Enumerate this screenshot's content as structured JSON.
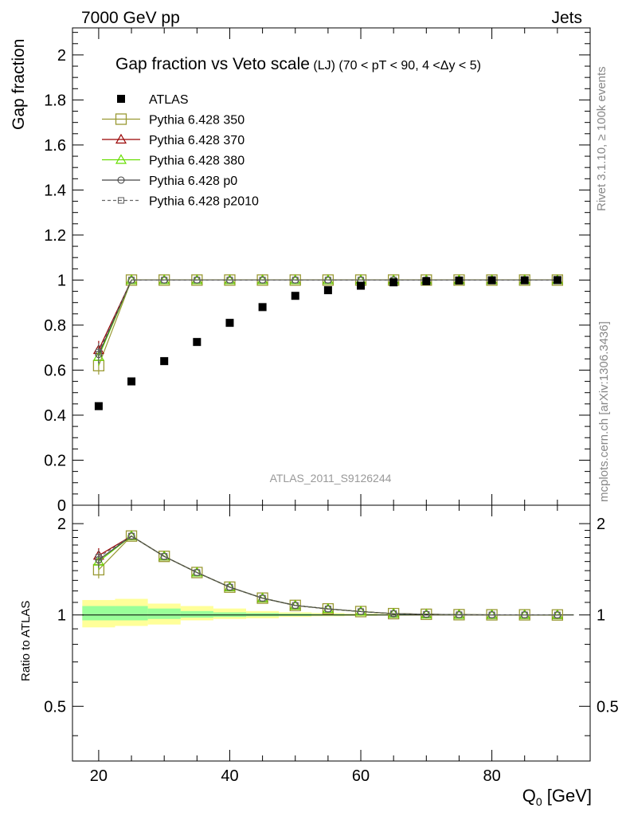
{
  "header": {
    "left": "7000 GeV pp",
    "right": "Jets"
  },
  "title": {
    "main": "Gap fraction vs Veto scale",
    "sub": "(LJ) (70 < pT <  90, 4 <Δy < 5)"
  },
  "side_labels": {
    "top": "Rivet 3.1.10, ≥ 100k events",
    "bottom": "mcplots.cern.ch [arXiv:1306.3436]"
  },
  "watermark": "ATLAS_2011_S9126244",
  "colors": {
    "ATLAS": "#000000",
    "350": "#999933",
    "370": "#990000",
    "380": "#66dd00",
    "p0": "#444444",
    "p2010": "#666666",
    "band_outer": "#ffff99",
    "band_inner": "#99ff99"
  },
  "chart_data": [
    {
      "type": "scatter",
      "ylabel": "Gap fraction",
      "xlim": [
        16,
        95
      ],
      "ylim": [
        0,
        2.12
      ],
      "yticks": [
        0,
        0.2,
        0.4,
        0.6,
        0.8,
        1,
        1.2,
        1.4,
        1.6,
        1.8,
        2
      ],
      "ytick_labels": [
        "0",
        "0.2",
        "0.4",
        "0.6",
        "0.8",
        "1",
        "1.2",
        "1.4",
        "1.6",
        "1.8",
        "2"
      ],
      "legend_position": "top-left",
      "x": [
        20,
        25,
        30,
        35,
        40,
        45,
        50,
        55,
        60,
        65,
        70,
        75,
        80,
        85,
        90
      ],
      "series": [
        {
          "name": "ATLAS",
          "key": "ATLAS",
          "marker": "filled-square",
          "values": [
            0.44,
            0.55,
            0.64,
            0.725,
            0.81,
            0.88,
            0.93,
            0.955,
            0.975,
            0.99,
            0.995,
            0.998,
            0.999,
            0.999,
            1.0
          ]
        },
        {
          "name": "Pythia 6.428 350",
          "key": "350",
          "marker": "open-square-large",
          "values": [
            0.62,
            1.0,
            1.0,
            1.0,
            1.0,
            1.0,
            1.0,
            1.0,
            1.0,
            1.0,
            1.0,
            1.0,
            1.0,
            1.0,
            1.0
          ],
          "errors": [
            0.04,
            0,
            0,
            0,
            0,
            0,
            0,
            0,
            0,
            0,
            0,
            0,
            0,
            0,
            0
          ]
        },
        {
          "name": "Pythia 6.428 370",
          "key": "370",
          "marker": "open-triangle",
          "values": [
            0.69,
            1.0,
            1.0,
            1.0,
            1.0,
            1.0,
            1.0,
            1.0,
            1.0,
            1.0,
            1.0,
            1.0,
            1.0,
            1.0,
            1.0
          ],
          "errors": [
            0.04,
            0,
            0,
            0,
            0,
            0,
            0,
            0,
            0,
            0,
            0,
            0,
            0,
            0,
            0
          ]
        },
        {
          "name": "Pythia 6.428 380",
          "key": "380",
          "marker": "open-triangle",
          "values": [
            0.66,
            1.0,
            1.0,
            1.0,
            1.0,
            1.0,
            1.0,
            1.0,
            1.0,
            1.0,
            1.0,
            1.0,
            1.0,
            1.0,
            1.0
          ],
          "errors": [
            0.04,
            0,
            0,
            0,
            0,
            0,
            0,
            0,
            0,
            0,
            0,
            0,
            0,
            0,
            0
          ]
        },
        {
          "name": "Pythia 6.428 p0",
          "key": "p0",
          "marker": "open-circle",
          "values": [
            0.67,
            1.0,
            1.0,
            1.0,
            1.0,
            1.0,
            1.0,
            1.0,
            1.0,
            1.0,
            1.0,
            1.0,
            1.0,
            1.0,
            1.0
          ],
          "errors": [
            0.04,
            0,
            0,
            0,
            0,
            0,
            0,
            0,
            0,
            0,
            0,
            0,
            0,
            0,
            0
          ]
        },
        {
          "name": "Pythia 6.428 p2010",
          "key": "p2010",
          "marker": "open-square-small",
          "dashed": true,
          "values": [
            0.68,
            1.0,
            1.0,
            1.0,
            1.0,
            1.0,
            1.0,
            1.0,
            1.0,
            1.0,
            1.0,
            1.0,
            1.0,
            1.0,
            1.0
          ],
          "errors": [
            0.04,
            0,
            0,
            0,
            0,
            0,
            0,
            0,
            0,
            0,
            0,
            0,
            0,
            0,
            0
          ]
        }
      ]
    },
    {
      "type": "line",
      "xlabel": "Q",
      "xlabel_sub": "0",
      "xlabel_unit": " [GeV]",
      "ylabel": "Ratio to ATLAS",
      "xlim": [
        16,
        95
      ],
      "ylim": [
        0.33,
        2.3
      ],
      "log_y": true,
      "xticks": [
        20,
        40,
        60,
        80
      ],
      "xtick_labels": [
        "20",
        "40",
        "60",
        "80"
      ],
      "yticks": [
        0.5,
        1,
        2
      ],
      "ytick_labels": [
        "0.5",
        "1",
        "2"
      ],
      "x": [
        20,
        25,
        30,
        35,
        40,
        45,
        50,
        55,
        60,
        65,
        70,
        75,
        80,
        85,
        90
      ],
      "bands": {
        "edges": [
          17.5,
          22.5,
          27.5,
          32.5,
          37.5,
          42.5,
          47.5,
          52.5,
          57.5,
          62.5,
          67.5,
          72.5,
          77.5,
          82.5,
          87.5,
          92.5
        ],
        "outer": [
          [
            0.91,
            1.12
          ],
          [
            0.92,
            1.13
          ],
          [
            0.93,
            1.09
          ],
          [
            0.96,
            1.07
          ],
          [
            0.97,
            1.05
          ],
          [
            0.975,
            1.03
          ],
          [
            0.985,
            1.02
          ],
          [
            0.99,
            1.015
          ],
          [
            0.993,
            1.01
          ],
          [
            0.995,
            1.007
          ],
          [
            0.996,
            1.005
          ],
          [
            0.997,
            1.004
          ],
          [
            0.998,
            1.003
          ],
          [
            0.998,
            1.003
          ],
          [
            0.998,
            1.003
          ]
        ],
        "inner": [
          [
            0.96,
            1.07
          ],
          [
            0.96,
            1.07
          ],
          [
            0.97,
            1.05
          ],
          [
            0.98,
            1.03
          ],
          [
            0.985,
            1.02
          ],
          [
            0.99,
            1.015
          ],
          [
            0.993,
            1.01
          ],
          [
            0.995,
            1.007
          ],
          [
            0.997,
            1.005
          ],
          [
            0.998,
            1.004
          ],
          [
            0.998,
            1.003
          ],
          [
            0.999,
            1.002
          ],
          [
            0.999,
            1.002
          ],
          [
            0.999,
            1.002
          ],
          [
            0.999,
            1.002
          ]
        ]
      },
      "series": [
        {
          "name": "Pythia 6.428 350",
          "key": "350",
          "marker": "open-square-large",
          "values": [
            1.41,
            1.82,
            1.56,
            1.38,
            1.235,
            1.136,
            1.075,
            1.047,
            1.026,
            1.01,
            1.005,
            1.002,
            1.001,
            1.001,
            1.0
          ],
          "errors": [
            0.09,
            0,
            0,
            0,
            0,
            0,
            0,
            0,
            0,
            0,
            0,
            0,
            0,
            0,
            0
          ]
        },
        {
          "name": "Pythia 6.428 370",
          "key": "370",
          "marker": "open-triangle",
          "values": [
            1.57,
            1.82,
            1.56,
            1.38,
            1.235,
            1.136,
            1.075,
            1.047,
            1.026,
            1.01,
            1.005,
            1.002,
            1.001,
            1.001,
            1.0
          ],
          "errors": [
            0.09,
            0,
            0,
            0,
            0,
            0,
            0,
            0,
            0,
            0,
            0,
            0,
            0,
            0,
            0
          ]
        },
        {
          "name": "Pythia 6.428 380",
          "key": "380",
          "marker": "open-triangle",
          "values": [
            1.5,
            1.82,
            1.56,
            1.38,
            1.235,
            1.136,
            1.075,
            1.047,
            1.026,
            1.01,
            1.005,
            1.002,
            1.001,
            1.001,
            1.0
          ],
          "errors": [
            0.09,
            0,
            0,
            0,
            0,
            0,
            0,
            0,
            0,
            0,
            0,
            0,
            0,
            0,
            0
          ]
        },
        {
          "name": "Pythia 6.428 p0",
          "key": "p0",
          "marker": "open-circle",
          "values": [
            1.52,
            1.82,
            1.56,
            1.38,
            1.235,
            1.136,
            1.075,
            1.047,
            1.026,
            1.01,
            1.005,
            1.002,
            1.001,
            1.001,
            1.0
          ],
          "errors": [
            0.09,
            0,
            0,
            0,
            0,
            0,
            0,
            0,
            0,
            0,
            0,
            0,
            0,
            0,
            0
          ]
        },
        {
          "name": "Pythia 6.428 p2010",
          "key": "p2010",
          "marker": "open-square-small",
          "dashed": true,
          "values": [
            1.55,
            1.82,
            1.56,
            1.38,
            1.235,
            1.136,
            1.075,
            1.047,
            1.026,
            1.01,
            1.005,
            1.002,
            1.001,
            1.001,
            1.0
          ],
          "errors": [
            0.09,
            0,
            0,
            0,
            0,
            0,
            0,
            0,
            0,
            0,
            0,
            0,
            0,
            0,
            0
          ]
        }
      ]
    }
  ]
}
